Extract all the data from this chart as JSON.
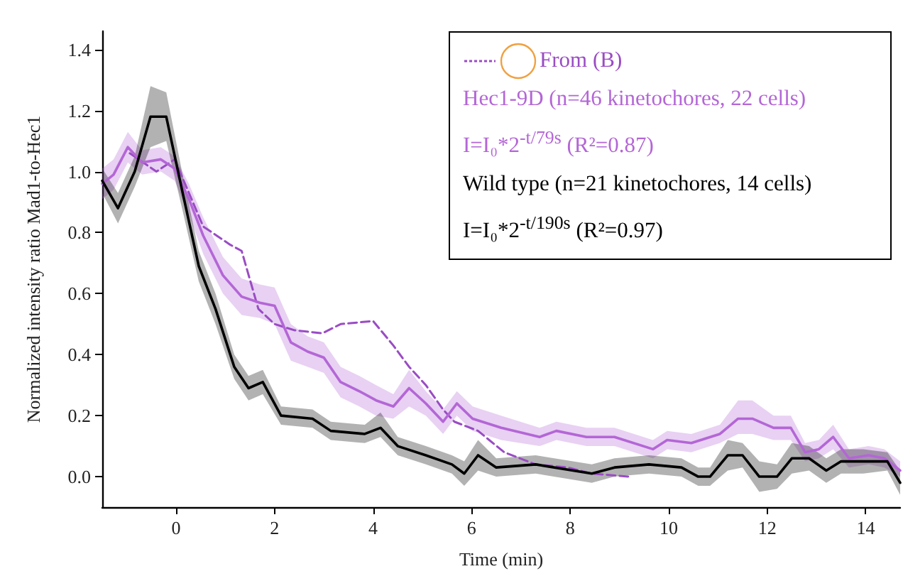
{
  "chart_data": {
    "type": "line",
    "xlabel": "Time (min)",
    "ylabel": "Normalized intensity ratio Mad1-to-Hec1",
    "xlim": [
      -1.5,
      14.7
    ],
    "ylim": [
      -0.1,
      1.46
    ],
    "xticks": [
      0,
      2,
      4,
      6,
      8,
      10,
      12,
      14
    ],
    "yticks": [
      {
        "value": 0,
        "label": "0.0"
      },
      {
        "value": 0.2,
        "label": "0.2"
      },
      {
        "value": 0.4,
        "label": "0.4"
      },
      {
        "value": 0.6,
        "label": "0.6"
      },
      {
        "value": 0.8,
        "label": "0.8"
      },
      {
        "value": 1,
        "label": "1.0"
      },
      {
        "value": 1.2,
        "label": "1.2"
      },
      {
        "value": 1.4,
        "label": "1.4"
      }
    ],
    "grid": false,
    "legend": "top right",
    "annotations": [
      "I=I₀*2$^{-t/79s}$ (R²=0.87)",
      "I=I₀*2$^{-t/190s}$ (R²=0.97)"
    ],
    "series": [
      {
        "name": "From (B)",
        "color": "#9a4cc4",
        "line_style": "dashed",
        "x": [
          -0.94,
          -0.4,
          -0.03,
          0.55,
          1.1,
          1.33,
          1.67,
          2.0,
          2.4,
          2.97,
          3.34,
          4.0,
          4.41,
          4.73,
          5.07,
          5.42,
          5.65,
          6.13,
          6.66,
          7.3,
          7.95,
          8.44,
          9.2
        ],
        "values": [
          1.06,
          1.0,
          1.04,
          0.82,
          0.76,
          0.74,
          0.55,
          0.5,
          0.48,
          0.47,
          0.5,
          0.51,
          0.43,
          0.36,
          0.3,
          0.22,
          0.18,
          0.15,
          0.08,
          0.04,
          0.03,
          0.01,
          0.0
        ]
      },
      {
        "name": "Hec1-9D (n=46 kinetochores, 22 cells)",
        "color": "#b466d6",
        "line_style": "solid",
        "x": [
          -1.5,
          -1.27,
          -0.98,
          -0.69,
          -0.31,
          -0.03,
          0.26,
          0.55,
          0.95,
          1.33,
          1.7,
          2.0,
          2.33,
          2.67,
          3.0,
          3.34,
          3.72,
          4.06,
          4.41,
          4.73,
          5.07,
          5.42,
          5.7,
          6.02,
          6.6,
          7.38,
          7.72,
          8.33,
          8.9,
          9.68,
          9.97,
          10.46,
          11.04,
          11.41,
          11.7,
          12.13,
          12.48,
          12.77,
          13.05,
          13.34,
          13.66,
          14.06,
          14.38,
          14.7
        ],
        "values": [
          0.96,
          0.99,
          1.08,
          1.03,
          1.04,
          1.01,
          0.91,
          0.79,
          0.66,
          0.59,
          0.57,
          0.56,
          0.44,
          0.41,
          0.39,
          0.31,
          0.28,
          0.25,
          0.23,
          0.29,
          0.24,
          0.18,
          0.24,
          0.19,
          0.16,
          0.13,
          0.15,
          0.13,
          0.13,
          0.09,
          0.12,
          0.11,
          0.14,
          0.19,
          0.19,
          0.16,
          0.16,
          0.08,
          0.09,
          0.13,
          0.06,
          0.07,
          0.06,
          0.02
        ],
        "lower": [
          0.91,
          0.94,
          1.03,
          0.99,
          1.0,
          0.97,
          0.86,
          0.73,
          0.6,
          0.53,
          0.52,
          0.5,
          0.38,
          0.36,
          0.34,
          0.26,
          0.23,
          0.2,
          0.19,
          0.23,
          0.2,
          0.14,
          0.2,
          0.15,
          0.12,
          0.1,
          0.12,
          0.1,
          0.1,
          0.06,
          0.09,
          0.08,
          0.11,
          0.14,
          0.14,
          0.12,
          0.12,
          0.05,
          0.06,
          0.09,
          0.03,
          0.04,
          0.03,
          0.0
        ],
        "upper": [
          1.01,
          1.04,
          1.13,
          1.07,
          1.08,
          1.05,
          0.96,
          0.85,
          0.72,
          0.65,
          0.63,
          0.62,
          0.5,
          0.46,
          0.44,
          0.36,
          0.33,
          0.3,
          0.27,
          0.35,
          0.28,
          0.22,
          0.28,
          0.23,
          0.2,
          0.16,
          0.18,
          0.16,
          0.16,
          0.12,
          0.15,
          0.14,
          0.17,
          0.25,
          0.25,
          0.2,
          0.2,
          0.11,
          0.12,
          0.17,
          0.09,
          0.1,
          0.09,
          0.05
        ]
      },
      {
        "name": "Wild type (n=21 kinetochores, 14 cells)",
        "color": "#000000",
        "line_style": "solid",
        "x": [
          -1.5,
          -1.18,
          -0.84,
          -0.52,
          -0.2,
          0.12,
          0.46,
          0.8,
          1.18,
          1.47,
          1.76,
          2.13,
          2.77,
          3.14,
          3.83,
          4.15,
          4.5,
          5.07,
          5.6,
          5.85,
          6.13,
          6.5,
          7.3,
          8.44,
          8.9,
          9.6,
          10.26,
          10.6,
          10.84,
          11.2,
          11.5,
          11.84,
          12.2,
          12.5,
          12.85,
          13.2,
          13.5,
          13.95,
          14.44,
          14.7
        ],
        "values": [
          0.97,
          0.88,
          1.0,
          1.18,
          1.18,
          0.94,
          0.69,
          0.55,
          0.36,
          0.29,
          0.31,
          0.2,
          0.19,
          0.15,
          0.14,
          0.16,
          0.1,
          0.07,
          0.04,
          0.01,
          0.07,
          0.03,
          0.04,
          0.01,
          0.03,
          0.04,
          0.03,
          0.0,
          0.0,
          0.07,
          0.07,
          0.0,
          0.0,
          0.06,
          0.06,
          0.02,
          0.05,
          0.05,
          0.05,
          -0.02
        ],
        "lower": [
          0.93,
          0.83,
          0.95,
          1.08,
          1.1,
          0.88,
          0.64,
          0.5,
          0.32,
          0.25,
          0.27,
          0.17,
          0.16,
          0.12,
          0.11,
          0.13,
          0.07,
          0.04,
          0.01,
          -0.03,
          0.02,
          0.0,
          0.01,
          -0.02,
          0.0,
          0.01,
          0.0,
          -0.03,
          -0.03,
          0.02,
          0.03,
          -0.05,
          -0.04,
          0.01,
          0.02,
          -0.02,
          0.01,
          0.01,
          0.02,
          -0.06
        ],
        "upper": [
          1.01,
          0.93,
          1.05,
          1.28,
          1.26,
          1.0,
          0.74,
          0.6,
          0.4,
          0.33,
          0.35,
          0.23,
          0.22,
          0.18,
          0.17,
          0.21,
          0.13,
          0.1,
          0.07,
          0.05,
          0.12,
          0.06,
          0.07,
          0.04,
          0.06,
          0.07,
          0.06,
          0.03,
          0.03,
          0.12,
          0.11,
          0.05,
          0.04,
          0.11,
          0.1,
          0.06,
          0.09,
          0.09,
          0.08,
          0.02
        ]
      }
    ]
  }
}
